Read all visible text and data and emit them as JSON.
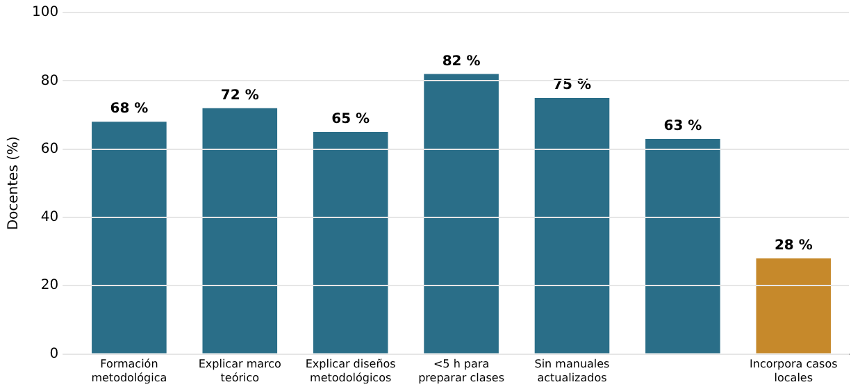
{
  "chart_data": {
    "type": "bar",
    "ylabel": "Docentes (%)",
    "categories": [
      "Formación metodológica",
      "Explicar marco teórico",
      "Explicar diseños metodológicos",
      "<5 h para preparar clases",
      "Sin manuales actualizados",
      null,
      "Incorpora casos locales"
    ],
    "values": [
      68,
      72,
      65,
      82,
      75,
      63,
      28
    ],
    "value_labels": [
      "68 %",
      "72 %",
      "65 %",
      "82 %",
      "75 %",
      "63 %",
      "28 %"
    ],
    "colors": [
      "#2a6e88",
      "#2a6e88",
      "#2a6e88",
      "#2a6e88",
      "#2a6e88",
      "#2a6e88",
      "#c6892b"
    ],
    "ylim": [
      0,
      100
    ],
    "yticks": [
      0,
      20,
      40,
      60,
      80,
      100
    ],
    "grid": "y",
    "legend": false
  }
}
